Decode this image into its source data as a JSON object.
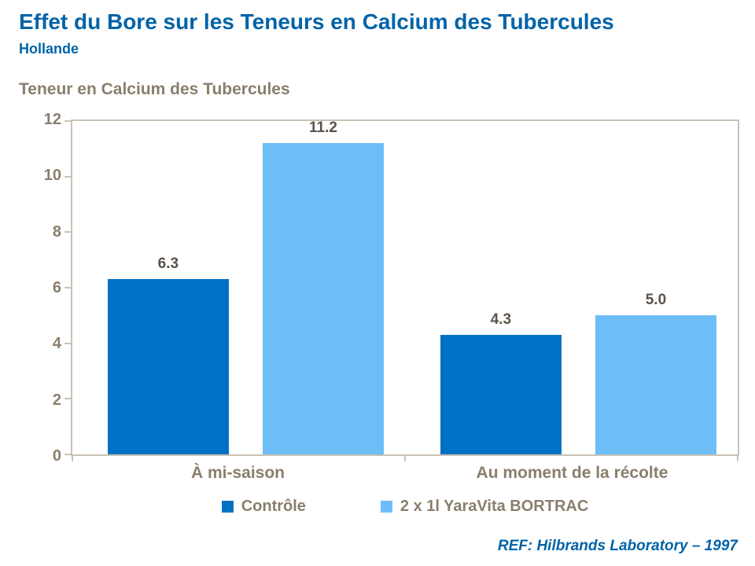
{
  "header": {
    "title": "Effet du Bore sur les Teneurs en Calcium des Tubercules",
    "subtitle": "Hollande"
  },
  "chart_data": {
    "type": "bar",
    "title": "Teneur en Calcium des Tubercules",
    "categories": [
      "À mi-saison",
      "Au moment de la récolte"
    ],
    "series": [
      {
        "name": "Contrôle",
        "color": "#0071C5",
        "values": [
          6.3,
          4.3
        ],
        "labels": [
          "6.3",
          "4.3"
        ]
      },
      {
        "name": "2 x 1l YaraVita BORTRAC",
        "color": "#6DBEF7",
        "values": [
          11.2,
          5.0
        ],
        "labels": [
          "11.2",
          "5.0"
        ]
      }
    ],
    "xlabel": "",
    "ylabel": "",
    "ylim": [
      0,
      12
    ],
    "yticks": [
      0,
      2,
      4,
      6,
      8,
      10,
      12
    ],
    "grid": false,
    "legend_position": "bottom"
  },
  "colors": {
    "title_blue": "#0063A7",
    "axis_text": "#8A7E6C",
    "value_label": "#5A5248",
    "plot_border": "#C9C1B4"
  },
  "footer": {
    "ref": "REF: Hilbrands Laboratory – 1997"
  }
}
